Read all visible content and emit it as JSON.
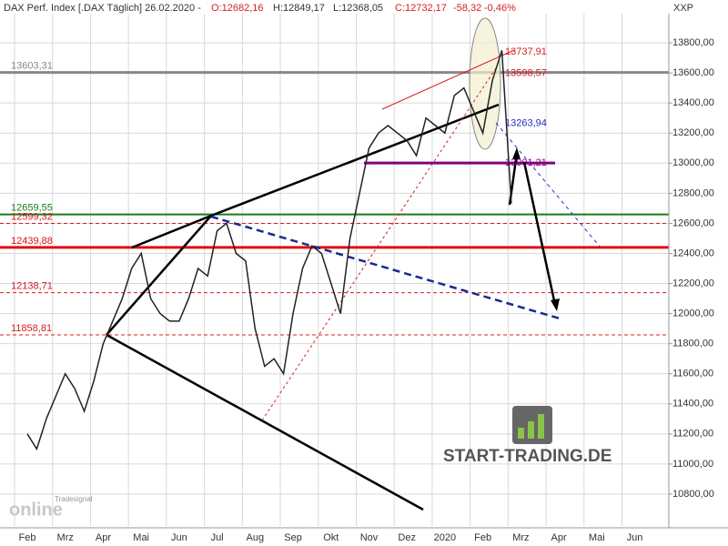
{
  "chart_data": {
    "type": "line",
    "header": {
      "name": "DAX Perf. Index [.DAX  Täglich] 26.02.2020 -",
      "open": "O:12682,16",
      "high": "H:12849,17",
      "low": "L:12368,05",
      "close": "C:12732,17",
      "change": "-58,32",
      "change_pct": "-0,46%"
    },
    "axis_label": "XXP",
    "categories": [
      "Feb",
      null,
      null,
      null,
      "Mrz",
      null,
      null,
      null,
      "Apr",
      null,
      null,
      null,
      "Mai",
      null,
      null,
      null,
      "Jun",
      null,
      null,
      null,
      "Jul",
      null,
      null,
      null,
      "Aug",
      null,
      null,
      null,
      "Sep",
      null,
      null,
      null,
      "Okt",
      null,
      null,
      null,
      "Nov",
      null,
      null,
      null,
      "Dez",
      null,
      null,
      null,
      "2020",
      null,
      null,
      null,
      "Feb",
      null,
      null,
      null,
      "Mrz",
      null,
      null,
      null,
      "Apr",
      null,
      null,
      null,
      "Mai",
      null,
      null,
      null,
      "Jun",
      null,
      null,
      null
    ],
    "series": [
      {
        "color": "#222222",
        "values": [
          11200,
          11100,
          11300,
          11450,
          11600,
          11500,
          11350,
          11550,
          11800,
          11950,
          12100,
          12300,
          12400,
          12100,
          12000,
          11950,
          11950,
          12100,
          12300,
          12250,
          12550,
          12600,
          12400,
          12350,
          11900,
          11650,
          11700,
          11600,
          12000,
          12300,
          12450,
          12400,
          12200,
          12000,
          12500,
          12800,
          13100,
          13200,
          13250,
          13200,
          13150,
          13050,
          13300,
          13250,
          13200,
          13450,
          13500,
          13350,
          13200,
          13550,
          13750,
          12732,
          null,
          null,
          null,
          null,
          null,
          null,
          null,
          null,
          null,
          null,
          null,
          null,
          null,
          null,
          null,
          null
        ]
      }
    ],
    "ylim": [
      10588,
      13994
    ],
    "yticks": [
      {
        "value": 10800,
        "label": "10800,00"
      },
      {
        "value": 11000,
        "label": "11000,00"
      },
      {
        "value": 11200,
        "label": "11200,00"
      },
      {
        "value": 11400,
        "label": "11400,00"
      },
      {
        "value": 11600,
        "label": "11600,00"
      },
      {
        "value": 11800,
        "label": "11800,00"
      },
      {
        "value": 12000,
        "label": "12000,00"
      },
      {
        "value": 12200,
        "label": "12200,00"
      },
      {
        "value": 12400,
        "label": "12400,00"
      },
      {
        "value": 12600,
        "label": "12600,00"
      },
      {
        "value": 12800,
        "label": "12800,00"
      },
      {
        "value": 13000,
        "label": "13000,00"
      },
      {
        "value": 13200,
        "label": "13200,00"
      },
      {
        "value": 13400,
        "label": "13400,00"
      },
      {
        "value": 13600,
        "label": "13600,00"
      },
      {
        "value": 13800,
        "label": "13800,00"
      }
    ],
    "grid": true,
    "levels": [
      {
        "value": 13603.31,
        "label": "13603,31",
        "color": "#888888",
        "width": 3,
        "dashed": false
      },
      {
        "value": 12659.55,
        "label": "12659,55",
        "color": "#1a7a1a",
        "width": 2,
        "dashed": false
      },
      {
        "value": 12599.32,
        "label": "12599,32",
        "color": "#d42020",
        "width": 1,
        "dashed": true
      },
      {
        "value": 12439.88,
        "label": "12439,88",
        "color": "#e01010",
        "width": 3,
        "dashed": false
      },
      {
        "value": 12138.71,
        "label": "12138,71",
        "color": "#d42020",
        "width": 1,
        "dashed": true
      },
      {
        "value": 11858.81,
        "label": "11858,81",
        "color": "#d42020",
        "width": 1,
        "dashed": true
      }
    ],
    "price_labels": [
      {
        "value": 13737.91,
        "label": "13737,91",
        "color": "#d42020"
      },
      {
        "value": 13598.57,
        "label": "13598,57",
        "color": "#d42020"
      },
      {
        "value": 13263.94,
        "label": "13263,94",
        "color": "#2030c0"
      },
      {
        "value": 13001.21,
        "label": "13001,21",
        "color": "#800080"
      }
    ],
    "logo": {
      "brand": "START-TRADING.DE",
      "signal": "Tradesignal",
      "online": "online"
    }
  }
}
